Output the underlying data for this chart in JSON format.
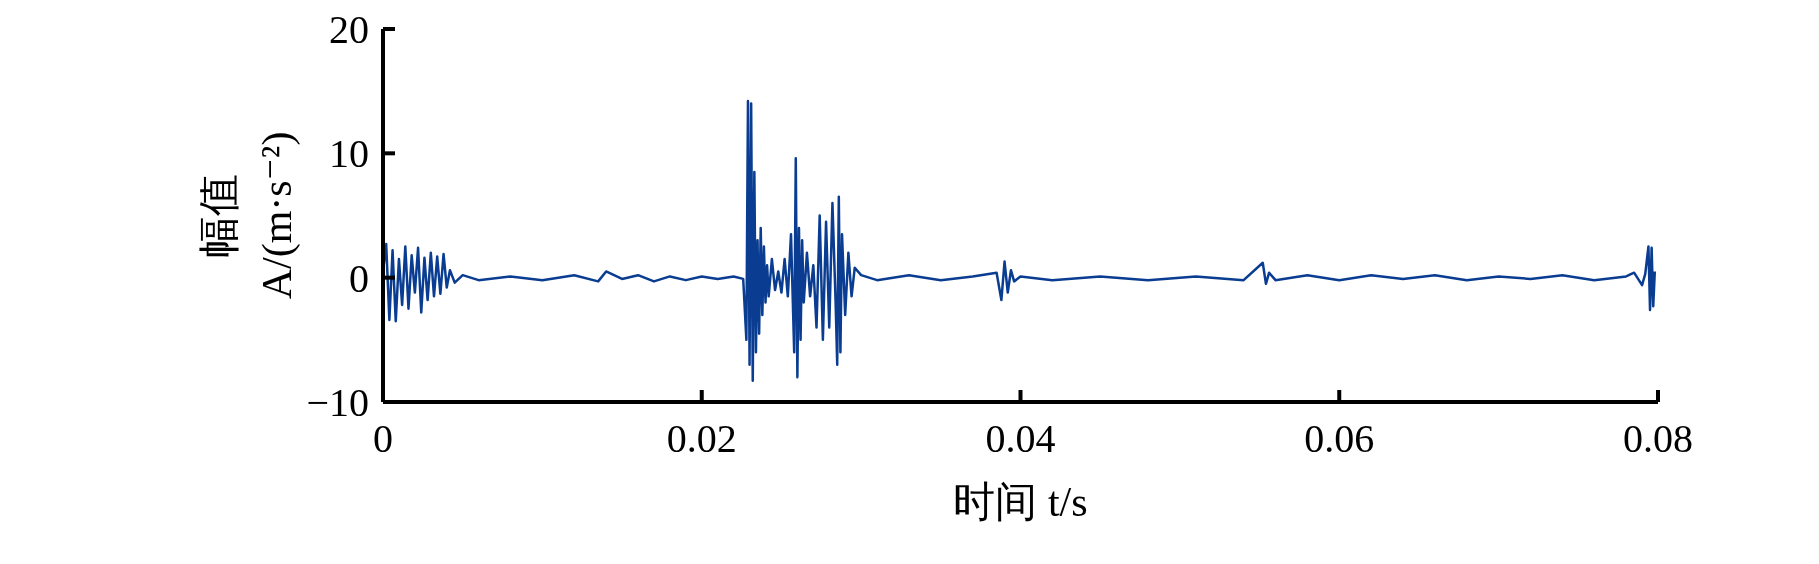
{
  "chart_data": {
    "type": "line",
    "xlabel": "时间 t/s",
    "ylabel": "幅值\nA/(m·s⁻²)",
    "xlim": [
      0,
      0.08
    ],
    "ylim": [
      -10,
      20
    ],
    "xticks": [
      0,
      0.02,
      0.04,
      0.06,
      0.08
    ],
    "yticks": [
      -10,
      0,
      10,
      20
    ],
    "grid": false,
    "series": [
      {
        "color": "#0a3d91",
        "x": [
          0,
          0.0002,
          0.0004,
          0.0006,
          0.0008,
          0.001,
          0.0012,
          0.0014,
          0.0016,
          0.0018,
          0.002,
          0.0022,
          0.0024,
          0.0026,
          0.0028,
          0.003,
          0.0032,
          0.0034,
          0.0036,
          0.0038,
          0.004,
          0.0042,
          0.0045,
          0.005,
          0.006,
          0.008,
          0.01,
          0.012,
          0.0135,
          0.014,
          0.015,
          0.016,
          0.017,
          0.018,
          0.019,
          0.02,
          0.021,
          0.022,
          0.0226,
          0.0228,
          0.0229,
          0.023,
          0.0231,
          0.0232,
          0.0233,
          0.0234,
          0.0235,
          0.0236,
          0.0237,
          0.0238,
          0.0239,
          0.024,
          0.0241,
          0.0242,
          0.0244,
          0.0246,
          0.0248,
          0.025,
          0.0252,
          0.0254,
          0.0256,
          0.0258,
          0.0259,
          0.026,
          0.0261,
          0.0262,
          0.0263,
          0.0264,
          0.0266,
          0.0268,
          0.027,
          0.0272,
          0.0274,
          0.0276,
          0.0278,
          0.028,
          0.0282,
          0.0284,
          0.0285,
          0.0286,
          0.0287,
          0.0288,
          0.029,
          0.0292,
          0.0294,
          0.0296,
          0.03,
          0.031,
          0.033,
          0.035,
          0.037,
          0.0385,
          0.0388,
          0.039,
          0.0392,
          0.0394,
          0.0396,
          0.04,
          0.042,
          0.045,
          0.048,
          0.051,
          0.054,
          0.0552,
          0.0554,
          0.0556,
          0.056,
          0.058,
          0.06,
          0.062,
          0.064,
          0.066,
          0.068,
          0.07,
          0.072,
          0.074,
          0.076,
          0.078,
          0.0785,
          0.079,
          0.0792,
          0.0794,
          0.0795,
          0.0796,
          0.0797,
          0.0798
        ],
        "values": [
          0.5,
          2.7,
          -3.4,
          2.2,
          -3.5,
          1.5,
          -2.2,
          2.5,
          -2.5,
          1.8,
          -1.2,
          2.4,
          -2.8,
          1.6,
          -1.8,
          2.0,
          -1.5,
          1.7,
          -1.3,
          1.9,
          -0.8,
          0.6,
          -0.4,
          0.2,
          -0.2,
          0.1,
          -0.2,
          0.2,
          -0.3,
          0.5,
          -0.1,
          0.2,
          -0.3,
          0.1,
          -0.2,
          0.1,
          -0.1,
          0.1,
          -0.1,
          -5,
          14.2,
          -7,
          14,
          -8.3,
          8.5,
          -6,
          3,
          -4.5,
          4,
          -3,
          2.5,
          -2,
          1,
          -1.5,
          1.5,
          -1,
          0.5,
          -1.2,
          1.5,
          -1.5,
          3.5,
          -6,
          9.6,
          -8,
          4,
          -5,
          3,
          -2,
          2,
          -1.5,
          1,
          -4,
          5,
          -5,
          4.5,
          -4,
          6,
          -2,
          -7,
          6.5,
          -6,
          3.5,
          -3,
          2,
          -1.5,
          0.8,
          0.2,
          -0.2,
          0.2,
          -0.2,
          0.1,
          0.4,
          -1.8,
          1.3,
          -1.2,
          0.6,
          -0.3,
          0.1,
          -0.2,
          0.1,
          -0.2,
          0.1,
          -0.2,
          1.2,
          -0.5,
          0.4,
          -0.2,
          0.2,
          -0.2,
          0.2,
          -0.1,
          0.2,
          -0.2,
          0.1,
          -0.1,
          0.2,
          -0.2,
          0.1,
          0.4,
          -0.6,
          0.3,
          2.5,
          -2.6,
          2.4,
          -2.3,
          0.5
        ]
      }
    ]
  }
}
